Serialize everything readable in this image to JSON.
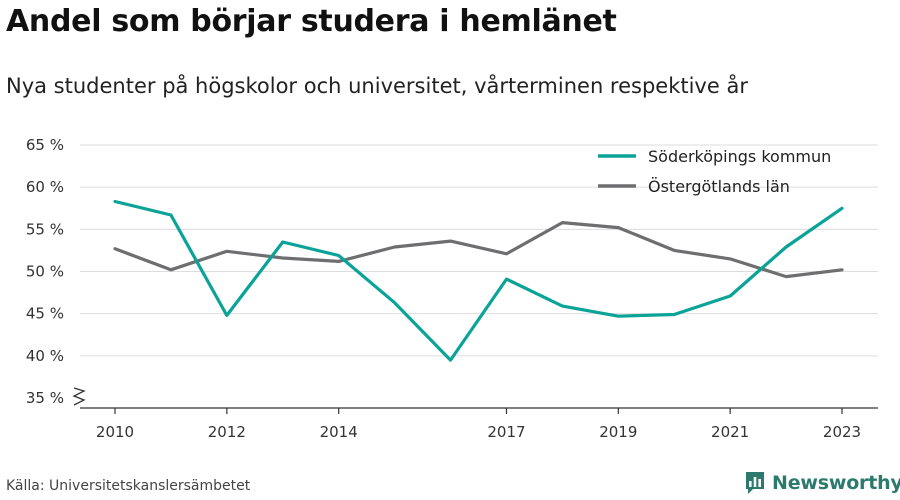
{
  "header": {
    "title": "Andel som börjar studera i hemlänet",
    "subtitle": "Nya studenter på högskolor och universitet, vårterminen respektive år"
  },
  "footer": {
    "source": "Källa: Universitetskanslersämbetet",
    "brand": "Newsworthy"
  },
  "icons": {
    "brand_logo": "newsworthy-logo-icon",
    "axis_break": "axis-break-icon"
  },
  "colors": {
    "series_1": "#0aa397",
    "series_2": "#6e6e70",
    "grid": "#dcdcdc",
    "brand": "#2b7a6d"
  },
  "chart_data": {
    "type": "line",
    "title": "Andel som börjar studera i hemlänet",
    "subtitle": "Nya studenter på högskolor och universitet, vårterminen respektive år",
    "x": [
      2010,
      2011,
      2012,
      2013,
      2014,
      2015,
      2016,
      2017,
      2018,
      2019,
      2020,
      2021,
      2022,
      2023
    ],
    "x_tick_labels": [
      "2010",
      "2012",
      "2014",
      "2017",
      "2019",
      "2021",
      "2023"
    ],
    "y_tick_labels": [
      "35 %",
      "40 %",
      "45 %",
      "50 %",
      "55 %",
      "60 %",
      "65 %"
    ],
    "y_ticks": [
      35,
      40,
      45,
      50,
      55,
      60,
      65
    ],
    "ylim": [
      35,
      65
    ],
    "grid": true,
    "legend_position": "top-right",
    "series": [
      {
        "name": "Söderköpings kommun",
        "color": "#0aa397",
        "values": [
          58.3,
          56.7,
          44.8,
          53.5,
          51.9,
          46.3,
          39.5,
          49.1,
          45.9,
          44.7,
          44.9,
          47.1,
          52.9,
          57.5
        ]
      },
      {
        "name": "Östergötlands län",
        "color": "#6e6e70",
        "values": [
          52.7,
          50.2,
          52.4,
          51.6,
          51.2,
          52.9,
          53.6,
          52.1,
          55.8,
          55.2,
          52.5,
          51.5,
          49.4,
          50.2
        ]
      }
    ]
  }
}
